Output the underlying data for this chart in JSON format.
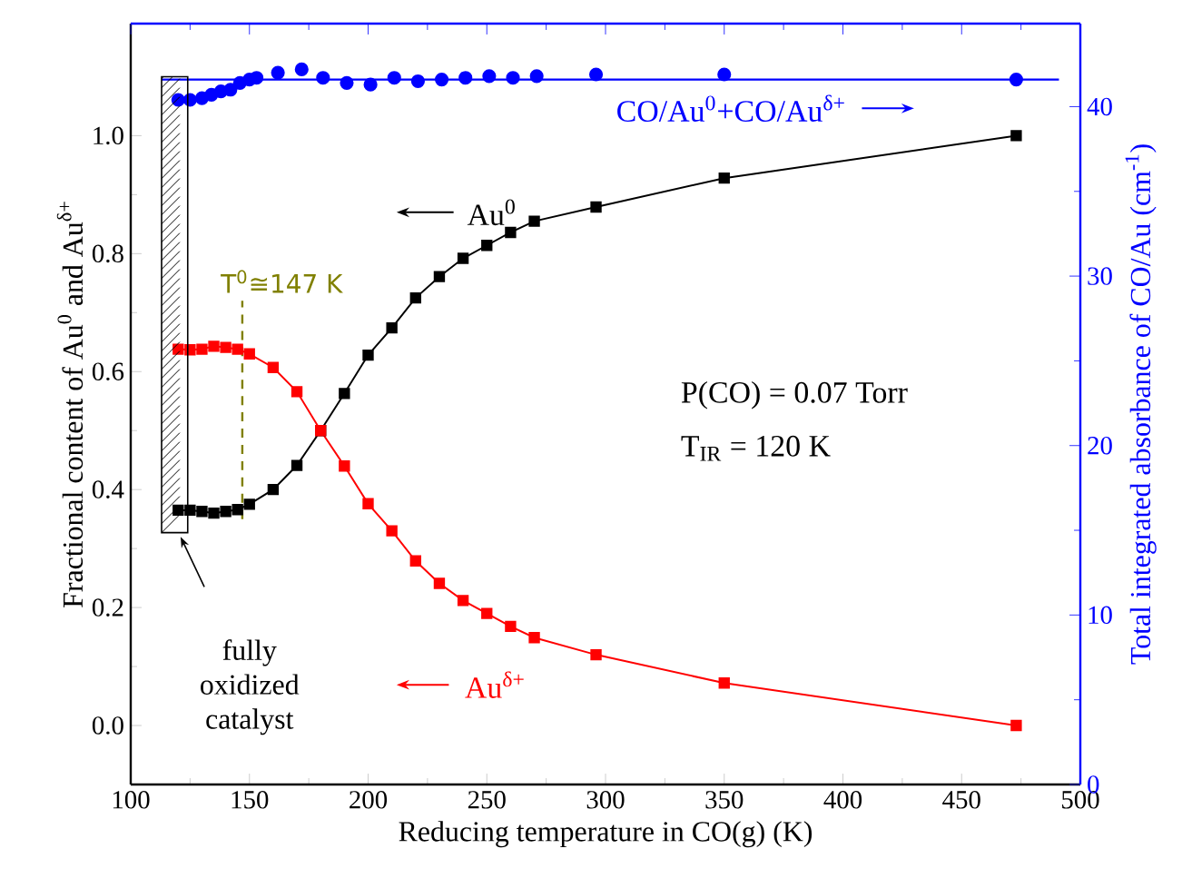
{
  "chart_data": {
    "type": "line",
    "xlabel": "Reducing temperature in CO(g) (K)",
    "ylabel": "Fractional content of Au$^{0}$ and Au$^{δ+}$",
    "y2label": "Total integrated absorbance of CO/Au (cm$^{-1}$)",
    "xlim": [
      100,
      500
    ],
    "xticks": [
      100,
      150,
      200,
      250,
      300,
      350,
      400,
      450,
      500
    ],
    "ylim": [
      -0.1,
      1.19
    ],
    "yticks": [
      {
        "value": 0,
        "label": "0.0"
      },
      {
        "value": 0.2,
        "label": "0.2"
      },
      {
        "value": 0.4,
        "label": "0.4"
      },
      {
        "value": 0.6,
        "label": "0.6"
      },
      {
        "value": 0.8,
        "label": "0.8"
      },
      {
        "value": 1.0,
        "label": "1.0"
      }
    ],
    "y2lim": [
      0,
      44.9
    ],
    "y2ticks": [
      0,
      10,
      20,
      30,
      40
    ],
    "grid": false,
    "legend": "center",
    "series": [
      {
        "name": "Au$^{0}$",
        "color": "#000000",
        "marker": "square",
        "line_style": "solid",
        "x": [
          120,
          125,
          130,
          135,
          140,
          145,
          150,
          160,
          170,
          180,
          190,
          200,
          210,
          220,
          230,
          240,
          250,
          260,
          270,
          296,
          350,
          473
        ],
        "values": [
          0.365,
          0.365,
          0.363,
          0.36,
          0.363,
          0.366,
          0.375,
          0.4,
          0.441,
          0.5,
          0.563,
          0.628,
          0.674,
          0.725,
          0.761,
          0.792,
          0.814,
          0.836,
          0.855,
          0.879,
          0.928,
          1.0
        ]
      },
      {
        "name": "Au$^{δ+}$",
        "color": "#ff0000",
        "marker": "square",
        "line_style": "solid",
        "x": [
          120,
          125,
          130,
          135,
          140,
          145,
          150,
          160,
          170,
          180,
          190,
          200,
          210,
          220,
          230,
          240,
          250,
          260,
          270,
          296,
          350,
          473
        ],
        "values": [
          0.638,
          0.637,
          0.638,
          0.643,
          0.641,
          0.638,
          0.63,
          0.607,
          0.566,
          0.5,
          0.44,
          0.376,
          0.33,
          0.279,
          0.241,
          0.212,
          0.19,
          0.168,
          0.149,
          0.12,
          0.072,
          0.0
        ]
      },
      {
        "name": "CO/Au$^{0}$+CO/Au$^{δ+}$",
        "type": "scatter",
        "axis": "y2",
        "color": "#0000ff",
        "marker": "circle",
        "x": [
          120,
          125,
          130,
          134,
          138,
          142,
          146,
          150,
          153,
          162,
          172,
          181,
          191,
          201,
          211,
          221,
          231,
          241,
          251,
          261,
          271,
          296,
          350,
          473
        ],
        "values": [
          40.4,
          40.4,
          40.5,
          40.7,
          40.9,
          41.0,
          41.4,
          41.6,
          41.7,
          42.0,
          42.2,
          41.7,
          41.4,
          41.3,
          41.7,
          41.5,
          41.6,
          41.7,
          41.8,
          41.7,
          41.8,
          41.9,
          41.9,
          41.6
        ]
      }
    ],
    "ref_lines": [
      {
        "axis": "x",
        "value": 147,
        "label": "T$^{0}$≅147 K",
        "color": "#808000",
        "line_style": "dashed"
      },
      {
        "axis": "y2",
        "value": 41.6,
        "color": "#0000ff",
        "line_style": "solid"
      }
    ],
    "annotations": [
      "P(CO) = 0.07 Torr",
      "T$_{IR}$ = 120 K",
      "fully oxidized catalyst"
    ]
  }
}
